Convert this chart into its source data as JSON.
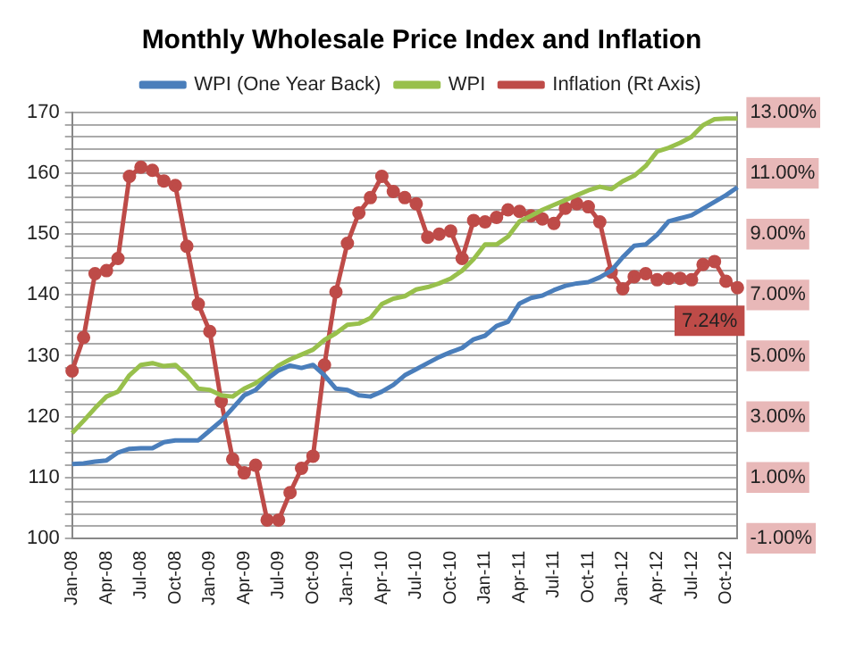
{
  "chart_data": {
    "type": "line",
    "title": "Monthly Wholesale Price Index and Inflation",
    "categories": [
      "Jan-08",
      null,
      null,
      "Apr-08",
      null,
      null,
      "Jul-08",
      null,
      null,
      "Oct-08",
      null,
      null,
      "Jan-09",
      null,
      null,
      "Apr-09",
      null,
      null,
      "Jul-09",
      null,
      null,
      "Oct-09",
      null,
      null,
      "Jan-10",
      null,
      null,
      "Apr-10",
      null,
      null,
      "Jul-10",
      null,
      null,
      "Oct-10",
      null,
      null,
      "Jan-11",
      null,
      null,
      "Apr-11",
      null,
      null,
      "Jul-11",
      null,
      null,
      "Oct-11",
      null,
      null,
      "Jan-12",
      null,
      null,
      "Apr-12",
      null,
      null,
      "Jul-12",
      null,
      null,
      "Oct-12",
      null
    ],
    "series": [
      {
        "name": "WPI (One Year Back)",
        "color": "#4a7ebb",
        "values": [
          112.2,
          112.3,
          112.6,
          112.8,
          114.1,
          114.7,
          114.8,
          114.8,
          115.8,
          116.1,
          116.1,
          116.1,
          117.7,
          119.3,
          121.4,
          123.5,
          124.4,
          126.2,
          127.6,
          128.4,
          128,
          128.5,
          126.8,
          124.6,
          124.4,
          123.5,
          123.3,
          124.1,
          125.2,
          126.8,
          127.8,
          128.8,
          129.8,
          130.6,
          131.3,
          132.7,
          133.3,
          134.9,
          135.6,
          138.6,
          139.5,
          139.9,
          140.8,
          141.5,
          141.9,
          142.1,
          142.9,
          144,
          146.2,
          148.1,
          148.3,
          149.9,
          152.1,
          152.6,
          153.1,
          154.2,
          155.3,
          156.4,
          157.7
        ]
      },
      {
        "name": "WPI",
        "color": "#98c04c",
        "values": [
          117.3,
          119.3,
          121.4,
          123.3,
          124.1,
          126.8,
          128.5,
          128.8,
          128.3,
          128.5,
          126.8,
          124.6,
          124.4,
          123.5,
          123.3,
          124.6,
          125.5,
          126.8,
          128.4,
          129.4,
          130.2,
          131,
          132.6,
          133.7,
          135.1,
          135.3,
          136.2,
          138.5,
          139.4,
          139.8,
          140.9,
          141.3,
          141.9,
          142.7,
          144,
          145.9,
          148.3,
          148.3,
          149.6,
          152.1,
          153,
          154,
          154.8,
          155.6,
          156.4,
          157.2,
          157.8,
          157.4,
          158.7,
          159.6,
          161.2,
          163.6,
          164.2,
          165,
          166,
          167.9,
          168.9,
          169,
          169
        ]
      },
      {
        "name": "Inflation (Rt Axis)",
        "color": "#be4b48",
        "axis": "y2",
        "marker": "circle",
        "values": [
          4.5,
          5.6,
          7.7,
          7.8,
          8.2,
          10.9,
          11.2,
          11.1,
          10.75,
          10.6,
          8.6,
          6.7,
          5.8,
          3.5,
          1.6,
          1.15,
          1.4,
          -0.4,
          -0.4,
          0.5,
          1.3,
          1.7,
          4.7,
          7.1,
          8.7,
          9.7,
          10.2,
          10.9,
          10.4,
          10.2,
          10,
          8.9,
          9,
          9.1,
          8.2,
          9.45,
          9.4,
          9.55,
          9.8,
          9.75,
          9.6,
          9.5,
          9.35,
          9.85,
          10,
          9.9,
          9.4,
          7.75,
          7.2,
          7.6,
          7.7,
          7.5,
          7.55,
          7.55,
          7.5,
          8,
          8.1,
          7.45,
          7.24
        ],
        "value_labels": [
          null,
          null,
          null,
          null,
          null,
          null,
          null,
          null,
          null,
          null,
          null,
          null,
          null,
          null,
          null,
          null,
          null,
          null,
          null,
          null,
          null,
          null,
          null,
          null,
          null,
          null,
          null,
          null,
          null,
          null,
          null,
          null,
          null,
          null,
          null,
          null,
          null,
          null,
          null,
          null,
          null,
          null,
          null,
          null,
          null,
          null,
          null,
          null,
          null,
          null,
          null,
          null,
          null,
          null,
          null,
          null,
          null,
          null,
          "7.24%"
        ]
      }
    ],
    "ylim": [
      100,
      170
    ],
    "yticks": [
      100,
      {
        "value": 102,
        "label": null
      },
      {
        "value": 104,
        "label": null
      },
      {
        "value": 106,
        "label": null
      },
      {
        "value": 108,
        "label": null
      },
      110,
      {
        "value": 112,
        "label": null
      },
      {
        "value": 114,
        "label": null
      },
      {
        "value": 116,
        "label": null
      },
      {
        "value": 118,
        "label": null
      },
      120,
      {
        "value": 122,
        "label": null
      },
      {
        "value": 124,
        "label": null
      },
      {
        "value": 126,
        "label": null
      },
      {
        "value": 128,
        "label": null
      },
      130,
      {
        "value": 132,
        "label": null
      },
      {
        "value": 134,
        "label": null
      },
      {
        "value": 136,
        "label": null
      },
      {
        "value": 138,
        "label": null
      },
      140,
      {
        "value": 142,
        "label": null
      },
      {
        "value": 144,
        "label": null
      },
      {
        "value": 146,
        "label": null
      },
      {
        "value": 148,
        "label": null
      },
      150,
      {
        "value": 152,
        "label": null
      },
      {
        "value": 154,
        "label": null
      },
      {
        "value": 156,
        "label": null
      },
      {
        "value": 158,
        "label": null
      },
      160,
      {
        "value": 162,
        "label": null
      },
      {
        "value": 164,
        "label": null
      },
      {
        "value": 166,
        "label": null
      },
      {
        "value": 168,
        "label": null
      },
      170
    ],
    "y2lim": [
      -1,
      13
    ],
    "y2ticks": [
      {
        "value": -1,
        "label": "-1.00%"
      },
      {
        "value": 1,
        "label": "1.00%"
      },
      {
        "value": 3,
        "label": "3.00%"
      },
      {
        "value": 5,
        "label": "5.00%"
      },
      {
        "value": 7,
        "label": "7.00%"
      },
      {
        "value": 9,
        "label": "9.00%"
      },
      {
        "value": 11,
        "label": "11.00%"
      },
      {
        "value": 13,
        "label": "13.00%"
      }
    ],
    "grid": "y",
    "legend": "top"
  }
}
